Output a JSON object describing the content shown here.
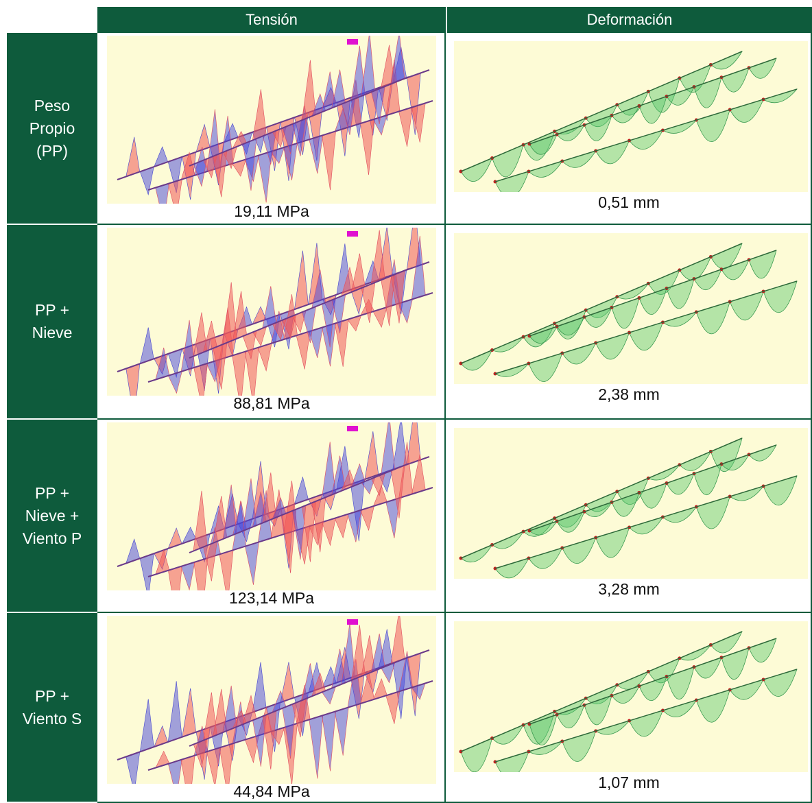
{
  "table": {
    "headers": [
      "Tensión",
      "Deformación"
    ],
    "rows": [
      {
        "label": "Peso\nPropio\n(PP)",
        "tension": "19,11 MPa",
        "deformation": "0,51 mm"
      },
      {
        "label": "PP +\nNieve",
        "tension": "88,81 MPa",
        "deformation": "2,38 mm"
      },
      {
        "label": "PP +\nNieve +\nViento P",
        "tension": "123,14 MPa",
        "deformation": "3,28 mm"
      },
      {
        "label": "PP +\nViento S",
        "tension": "44,84 MPa",
        "deformation": "1,07 mm"
      }
    ]
  }
}
